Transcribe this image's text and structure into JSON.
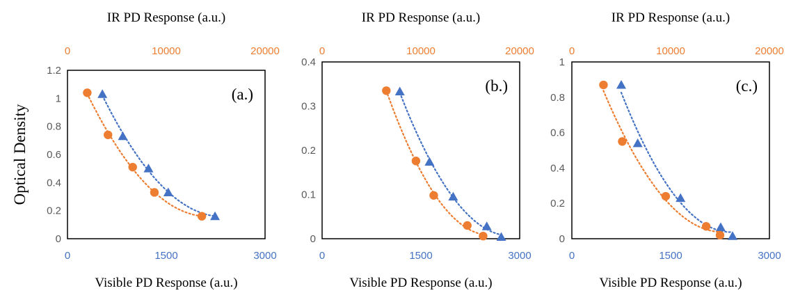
{
  "figure": {
    "ylabel": "Optical Density"
  },
  "colors": {
    "visible": "#4472C4",
    "ir": "#ED7D31",
    "axis": "#000000",
    "ytick": "#595959"
  },
  "chart_data": [
    {
      "type": "scatter",
      "panel_label": "(a.)",
      "xlabel": "Visible PD Response (a.u.)",
      "x2label": "IR PD Response (a.u.)",
      "ylabel": "Optical Density",
      "xlim": [
        0,
        3000
      ],
      "x2lim": [
        0,
        20000
      ],
      "ylim": [
        0,
        1.2
      ],
      "xticks": [
        "0",
        "1500",
        "3000"
      ],
      "x2ticks": [
        "0",
        "10000",
        "20000"
      ],
      "yticks": [
        "0",
        "0.2",
        "0.4",
        "0.6",
        "0.8",
        "1",
        "1.2"
      ],
      "series": [
        {
          "marker": "triangle",
          "color": "#4472C4",
          "axis": "bottom",
          "x": [
            530,
            840,
            1230,
            1530,
            2240
          ],
          "y": [
            1.03,
            0.73,
            0.5,
            0.33,
            0.16
          ]
        },
        {
          "marker": "circle",
          "color": "#ED7D31",
          "axis": "top",
          "x": [
            2000,
            4100,
            6600,
            8800,
            13600
          ],
          "y": [
            1.04,
            0.74,
            0.51,
            0.33,
            0.16
          ]
        }
      ]
    },
    {
      "type": "scatter",
      "panel_label": "(b.)",
      "xlabel": "Visible PD Response (a.u.)",
      "x2label": "IR PD Response (a.u.)",
      "ylabel": "",
      "xlim": [
        0,
        3000
      ],
      "x2lim": [
        0,
        20000
      ],
      "ylim": [
        0,
        0.4
      ],
      "xticks": [
        "0",
        "1500",
        "3000"
      ],
      "x2ticks": [
        "0",
        "10000",
        "20000"
      ],
      "yticks": [
        "0",
        "0.1",
        "0.2",
        "0.3",
        "0.4"
      ],
      "series": [
        {
          "marker": "triangle",
          "color": "#4472C4",
          "axis": "bottom",
          "x": [
            1180,
            1630,
            1990,
            2500,
            2720
          ],
          "y": [
            0.333,
            0.174,
            0.095,
            0.028,
            0.004
          ]
        },
        {
          "marker": "circle",
          "color": "#ED7D31",
          "axis": "top",
          "x": [
            6500,
            9500,
            11300,
            14700,
            16300
          ],
          "y": [
            0.335,
            0.176,
            0.098,
            0.03,
            0.006
          ]
        }
      ]
    },
    {
      "type": "scatter",
      "panel_label": "(c.)",
      "xlabel": "Visible PD Response (a.u.)",
      "x2label": "IR PD Response (a.u.)",
      "ylabel": "",
      "xlim": [
        0,
        3000
      ],
      "x2lim": [
        0,
        20000
      ],
      "ylim": [
        0,
        1.0
      ],
      "xticks": [
        "0",
        "1500",
        "3000"
      ],
      "x2ticks": [
        "0",
        "10000",
        "20000"
      ],
      "yticks": [
        "0",
        "0.2",
        "0.4",
        "0.6",
        "0.8",
        "1"
      ],
      "series": [
        {
          "marker": "triangle",
          "color": "#4472C4",
          "axis": "bottom",
          "x": [
            750,
            1000,
            1650,
            2260,
            2440
          ],
          "y": [
            0.87,
            0.54,
            0.23,
            0.065,
            0.015
          ]
        },
        {
          "marker": "circle",
          "color": "#ED7D31",
          "axis": "top",
          "x": [
            3200,
            5100,
            9500,
            13600,
            15000
          ],
          "y": [
            0.87,
            0.55,
            0.24,
            0.07,
            0.02
          ]
        }
      ]
    }
  ]
}
